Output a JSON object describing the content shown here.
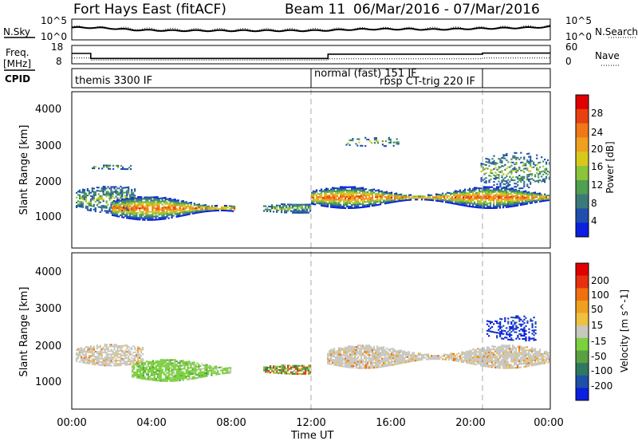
{
  "header": {
    "station": "Fort Hays East (fitACF)",
    "beam": "Beam 11",
    "dates": "06/Mar/2016 - 07/Mar/2016"
  },
  "chart_data": [
    {
      "type": "line",
      "panel": "noise",
      "ylabel_left": "N.Sky",
      "ylabel_right": "N.Search",
      "yticks_left": [
        "10^5",
        "10^0"
      ],
      "yticks_right": [
        "10^5",
        "10^0"
      ],
      "series": [
        {
          "name": "N.Sky",
          "style": "solid",
          "x": [
            0,
            1,
            2,
            3,
            4,
            5,
            6,
            7,
            8,
            9,
            10,
            11,
            12,
            13,
            14,
            15,
            16,
            17,
            18,
            19,
            20,
            21,
            22,
            23,
            24
          ],
          "values": [
            3,
            3,
            2.8,
            2.4,
            2.3,
            2.2,
            2.2,
            2.2,
            2.2,
            2.2,
            2.2,
            2.2,
            2.2,
            2.3,
            2.5,
            2.6,
            2.6,
            2.6,
            2.5,
            2.6,
            2.7,
            2.8,
            2.9,
            3.0,
            3.2
          ]
        },
        {
          "name": "N.Search",
          "style": "dotted",
          "x": [
            0,
            2,
            4,
            6,
            8,
            10,
            12,
            14,
            16,
            18,
            20,
            22,
            24
          ],
          "values": [
            3.2,
            2.9,
            2.6,
            2.5,
            2.5,
            2.5,
            2.5,
            2.7,
            2.8,
            2.8,
            2.9,
            3.1,
            3.4
          ]
        }
      ]
    },
    {
      "type": "line",
      "panel": "frequency",
      "ylabel_left": "Freq. [MHz]",
      "ylabel_right": "Nave",
      "yticks_left": [
        "18",
        "8"
      ],
      "yticks_right": [
        "60",
        "0"
      ],
      "series": [
        {
          "name": "Freq.",
          "style": "solid",
          "x": [
            0,
            0.95,
            0.95,
            12.85,
            12.85,
            20.6,
            20.6,
            24
          ],
          "values": [
            13.7,
            13.7,
            10.7,
            10.7,
            13.3,
            13.3,
            13.9,
            13.9
          ]
        },
        {
          "name": "Nave",
          "style": "dotted",
          "x": [
            0,
            0.95,
            0.95,
            12.85,
            12.85,
            20.6,
            20.6,
            24
          ],
          "values": [
            18,
            18,
            11,
            11,
            15,
            15,
            18,
            18
          ]
        }
      ]
    },
    {
      "type": "heatmap",
      "panel": "power",
      "ylabel": "Slant Range [km]",
      "yticks": [
        "1000",
        "2000",
        "3000",
        "4000"
      ],
      "ylim": [
        180,
        4500
      ],
      "colorbar": {
        "label": "Power [dB]",
        "ticks": [
          "4",
          "8",
          "12",
          "16",
          "20",
          "24",
          "28"
        ],
        "colors": [
          "#0a1fe0",
          "#1f4fae",
          "#3c7a7a",
          "#4fa04f",
          "#8cc43c",
          "#d8c81c",
          "#f0a020",
          "#f07818",
          "#e84010",
          "#e00000"
        ]
      }
    },
    {
      "type": "heatmap",
      "panel": "velocity",
      "ylabel": "Slant Range [km]",
      "yticks": [
        "1000",
        "2000",
        "3000",
        "4000"
      ],
      "ylim": [
        180,
        4500
      ],
      "colorbar": {
        "label": "Velocity [m s^-1]",
        "ticks": [
          "200",
          "100",
          "50",
          "15",
          "-15",
          "-50",
          "-100",
          "-200"
        ],
        "colors": [
          "#0a1fe0",
          "#1e50a8",
          "#2e7860",
          "#5aa040",
          "#7cd040",
          "#c8c8c0",
          "#f0c040",
          "#f0a020",
          "#f07010",
          "#e83010",
          "#e00000"
        ]
      }
    }
  ],
  "cpid": {
    "label": "CPID",
    "segments": [
      "themis 3300 IF",
      "normal (fast) 151 IF",
      "rbsp CT-trig 220 IF"
    ]
  },
  "xaxis": {
    "label": "Time UT",
    "ticks": [
      "00:00",
      "04:00",
      "08:00",
      "12:00",
      "16:00",
      "20:00",
      "00:00"
    ]
  }
}
